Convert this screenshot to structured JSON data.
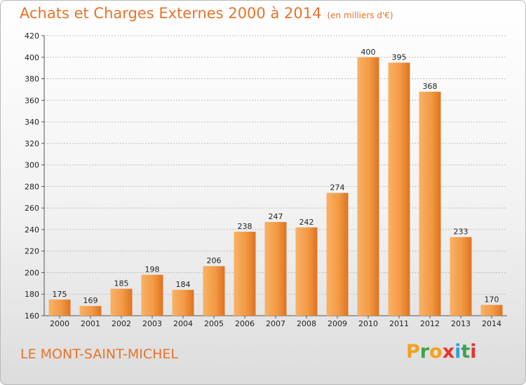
{
  "header": {
    "title": "Achats et Charges Externes 2000 à 2014",
    "unit": "(en milliers d'€)"
  },
  "footer": {
    "commune": "LE MONT-SAINT-MICHEL",
    "logo": "Proxiti",
    "logo_colors": [
      "#f5a11a",
      "#3fa34d",
      "#f5a11a",
      "#e8322f",
      "#2aa2d8",
      "#3fa34d",
      "#e8322f"
    ]
  },
  "colors": {
    "accent": "#e8732a",
    "bar_light": "#f7a554",
    "bar_dark": "#d96c16",
    "grid": "#bdbdbd"
  },
  "chart_data": {
    "type": "bar",
    "title": "Achats et Charges Externes 2000 à 2014",
    "subtitle": "(en milliers d'€)",
    "xlabel": "",
    "ylabel": "",
    "categories": [
      "2000",
      "2001",
      "2002",
      "2003",
      "2004",
      "2005",
      "2006",
      "2007",
      "2008",
      "2009",
      "2010",
      "2011",
      "2012",
      "2013",
      "2014"
    ],
    "values": [
      175,
      169,
      185,
      198,
      184,
      206,
      238,
      247,
      242,
      274,
      400,
      395,
      368,
      233,
      170
    ],
    "ylim": [
      160,
      420
    ],
    "yticks": [
      160,
      180,
      200,
      220,
      240,
      260,
      280,
      300,
      320,
      340,
      360,
      380,
      400,
      420
    ],
    "grid": true,
    "data_labels": true
  }
}
